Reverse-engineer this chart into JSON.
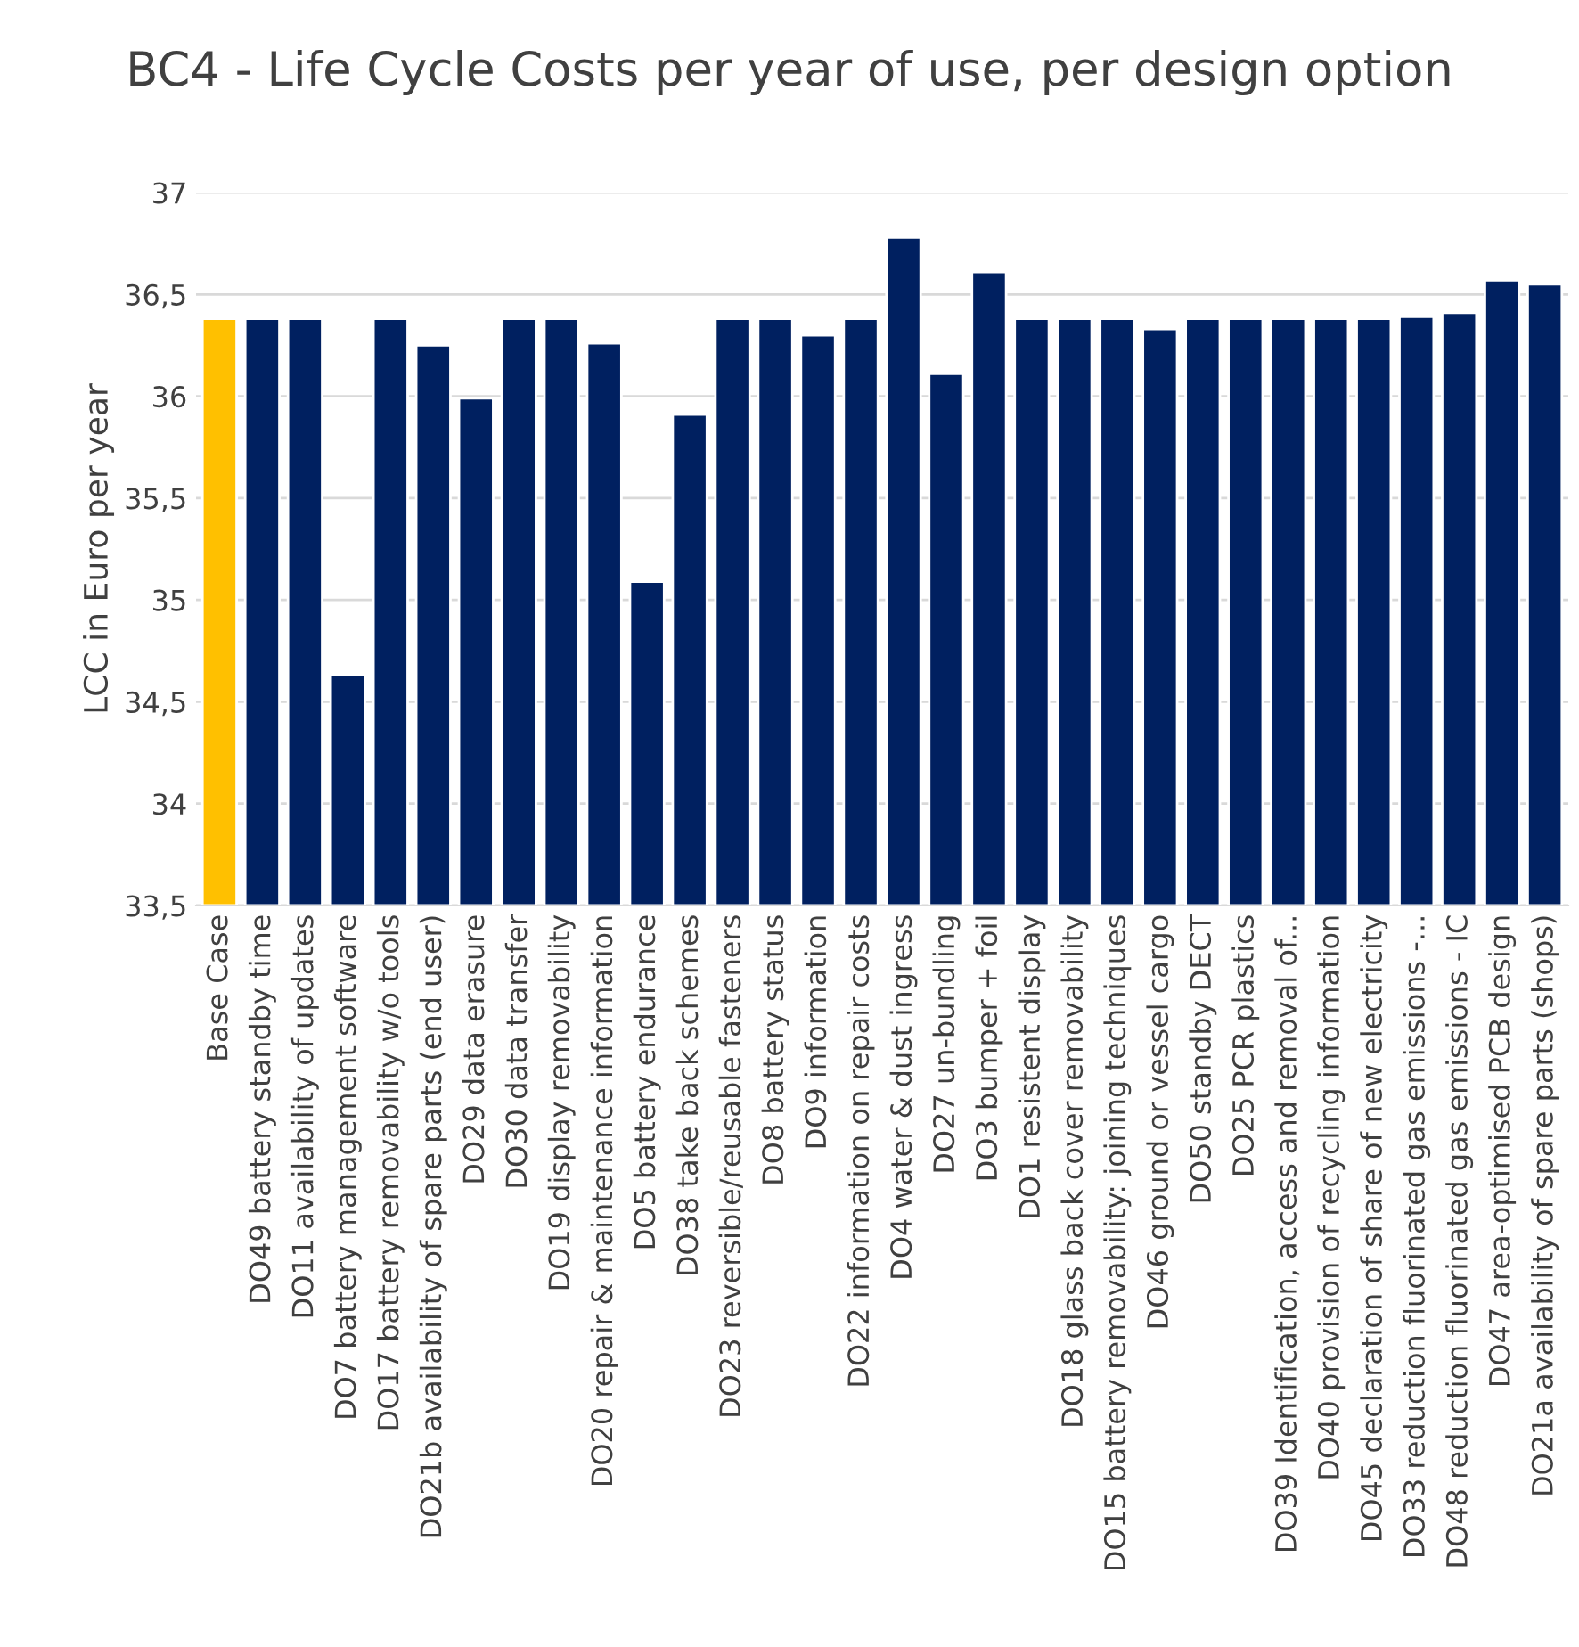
{
  "chart_data": {
    "type": "bar",
    "title": "BC4 - Life Cycle Costs per year of use, per design option",
    "ylabel": "LCC in Euro per year",
    "categories": [
      "Base Case",
      "DO49 battery standby time",
      "DO11 availability of updates",
      "DO7 battery management software",
      "DO17 battery removability w/o tools",
      "DO21b availability of spare parts (end user)",
      "DO29 data erasure",
      "DO30 data transfer",
      "DO19 display removability",
      "DO20 repair & maintenance information",
      "DO5 battery endurance",
      "DO38 take back schemes",
      "DO23 reversible/reusable fasteners",
      "DO8 battery status",
      "DO9 information",
      "DO22 information on repair costs",
      "DO4 water & dust ingress",
      "DO27 un-bundling",
      "DO3 bumper + foil",
      "DO1 resistent display",
      "DO18 glass back cover removability",
      "DO15 battery removability: joining techniques",
      "DO46 ground or vessel cargo",
      "DO50 standby DECT",
      "DO25 PCR plastics",
      "DO39 Identification, access and removal of...",
      "DO40 provision of recycling information",
      "DO45 declaration of share of new electricity",
      "DO33 reduction fluorinated gas emissions -...",
      "DO48 reduction fluorinated gas emissions - IC",
      "DO47 area-optimised PCB design",
      "DO21a availability of spare parts (shops)"
    ],
    "values": [
      36.38,
      36.38,
      36.38,
      34.63,
      36.38,
      36.25,
      35.99,
      36.38,
      36.38,
      36.26,
      35.09,
      35.91,
      36.38,
      36.38,
      36.3,
      36.38,
      36.78,
      36.11,
      36.61,
      36.38,
      36.38,
      36.38,
      36.33,
      36.38,
      36.38,
      36.38,
      36.38,
      36.38,
      36.39,
      36.41,
      36.57,
      36.55
    ],
    "colors": [
      "#ffc000",
      "#002060",
      "#002060",
      "#002060",
      "#002060",
      "#002060",
      "#002060",
      "#002060",
      "#002060",
      "#002060",
      "#002060",
      "#002060",
      "#002060",
      "#002060",
      "#002060",
      "#002060",
      "#002060",
      "#002060",
      "#002060",
      "#002060",
      "#002060",
      "#002060",
      "#002060",
      "#002060",
      "#002060",
      "#002060",
      "#002060",
      "#002060",
      "#002060",
      "#002060",
      "#002060",
      "#002060"
    ],
    "ylim": [
      33.5,
      37
    ],
    "yticks": [
      {
        "value": 33.5,
        "label": "33,5"
      },
      {
        "value": 34,
        "label": "34"
      },
      {
        "value": 34.5,
        "label": "34,5"
      },
      {
        "value": 35,
        "label": "35"
      },
      {
        "value": 35.5,
        "label": "35,5"
      },
      {
        "value": 36,
        "label": "36"
      },
      {
        "value": 36.5,
        "label": "36,5"
      },
      {
        "value": 37,
        "label": "37"
      }
    ],
    "grid": "y",
    "legend": false
  }
}
